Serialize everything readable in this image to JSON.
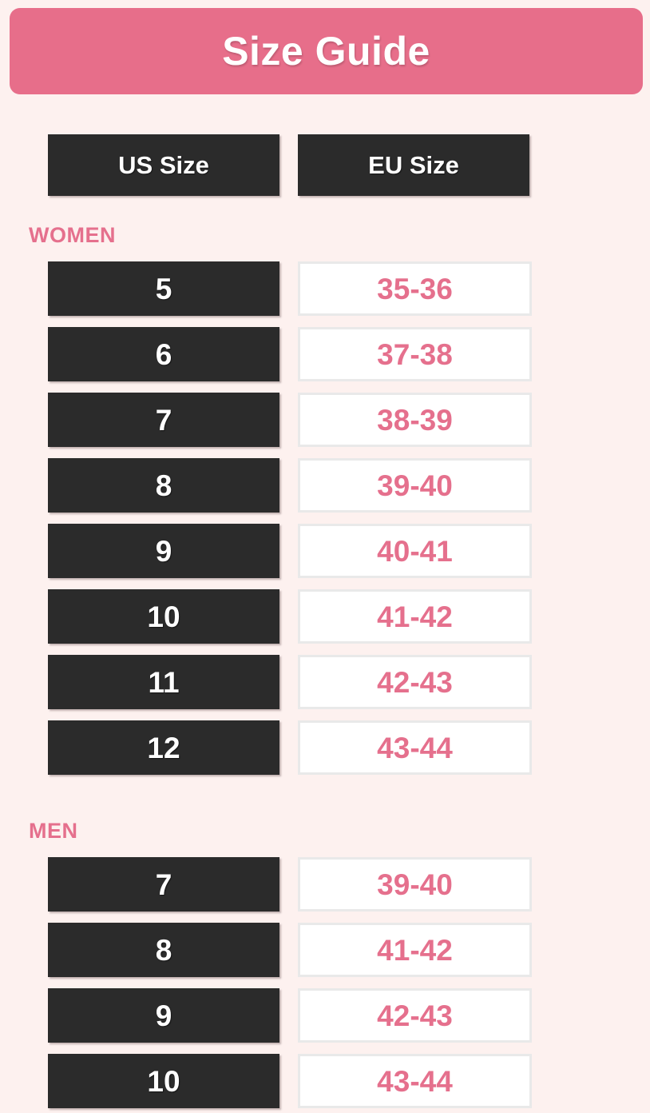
{
  "page": {
    "title": "Size Guide"
  },
  "table": {
    "columns": [
      "US Size",
      "EU Size"
    ],
    "sections": [
      {
        "label": "WOMEN",
        "rows": [
          {
            "us": "5",
            "eu": "35-36"
          },
          {
            "us": "6",
            "eu": "37-38"
          },
          {
            "us": "7",
            "eu": "38-39"
          },
          {
            "us": "8",
            "eu": "39-40"
          },
          {
            "us": "9",
            "eu": "40-41"
          },
          {
            "us": "10",
            "eu": "41-42"
          },
          {
            "us": "11",
            "eu": "42-43"
          },
          {
            "us": "12",
            "eu": "43-44"
          }
        ]
      },
      {
        "label": "MEN",
        "rows": [
          {
            "us": "7",
            "eu": "39-40"
          },
          {
            "us": "8",
            "eu": "41-42"
          },
          {
            "us": "9",
            "eu": "42-43"
          },
          {
            "us": "10",
            "eu": "43-44"
          }
        ]
      }
    ]
  },
  "colors": {
    "accent_pink": "#E76E8A",
    "value_pink": "#E5708D",
    "background": "#FDF1EF",
    "cell_dark": "#2B2B2B",
    "cell_border": "#E9E9E9",
    "cell_white": "#FFFFFF"
  }
}
